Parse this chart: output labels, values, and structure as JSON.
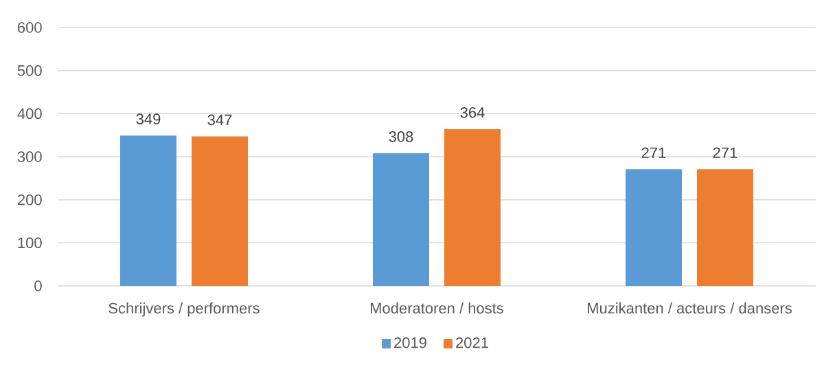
{
  "chart_data": {
    "type": "bar",
    "categories": [
      "Schrijvers / performers",
      "Moderatoren / hosts",
      "Muzikanten / acteurs / dansers"
    ],
    "series": [
      {
        "name": "2019",
        "color": "#5b9bd5",
        "values": [
          349,
          308,
          271
        ]
      },
      {
        "name": "2021",
        "color": "#ed7d31",
        "values": [
          347,
          364,
          271
        ]
      }
    ],
    "ylim": [
      0,
      600
    ],
    "yticks": [
      0,
      100,
      200,
      300,
      400,
      500,
      600
    ],
    "grid": "y",
    "legend": "bottom",
    "data_labels": true
  }
}
